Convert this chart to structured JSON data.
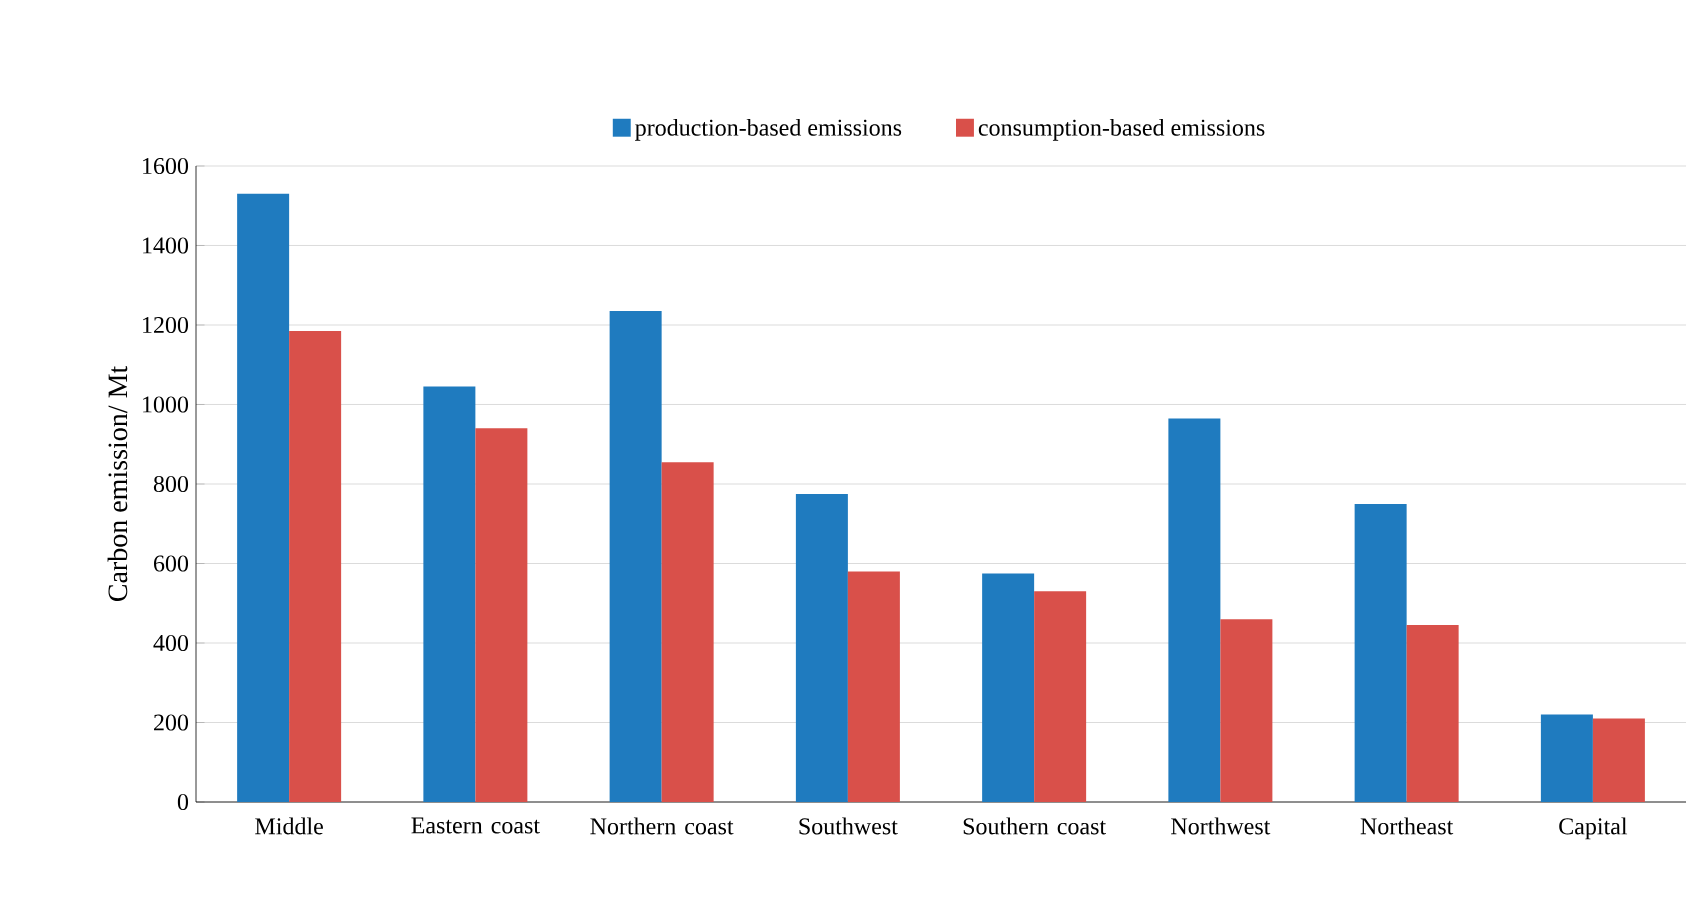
{
  "chart_data": {
    "type": "bar",
    "ylabel": "Carbon emission/ Mt",
    "categories": [
      "Middle",
      "Eastern coast",
      "Northern coast",
      "Southwest",
      "Southern coast",
      "Northwest",
      "Northeast",
      "Capital"
    ],
    "series": [
      {
        "name": "production-based emissions",
        "color": "#1f7bbf",
        "values": [
          1530,
          1045,
          1235,
          775,
          575,
          965,
          750,
          220
        ]
      },
      {
        "name": "consumption-based emissions",
        "color": "#d9504a",
        "values": [
          1185,
          940,
          855,
          580,
          530,
          460,
          445,
          210
        ]
      }
    ],
    "ylim": [
      0,
      1600
    ],
    "yticks": [
      0,
      200,
      400,
      600,
      800,
      1000,
      1200,
      1400,
      1600
    ],
    "grid": "y",
    "legend": "top"
  }
}
